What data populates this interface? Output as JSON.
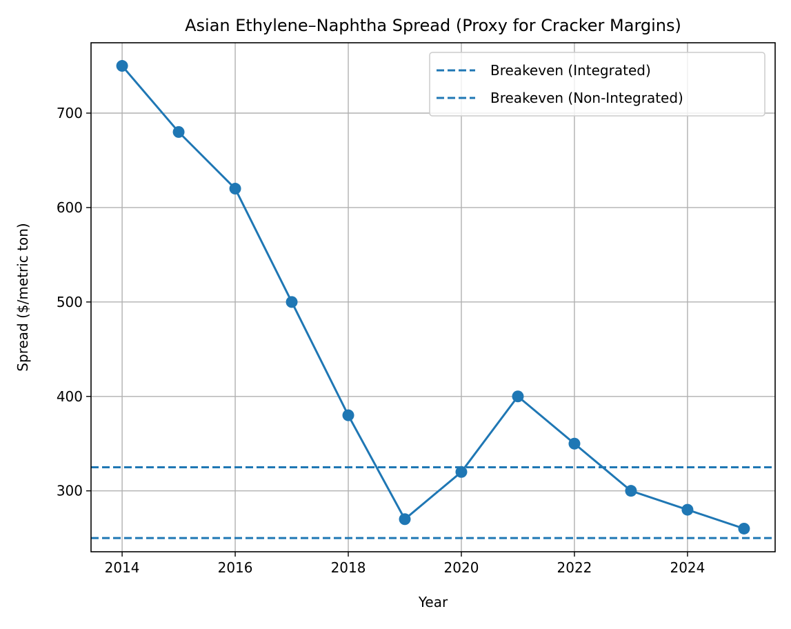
{
  "chart_data": {
    "type": "line",
    "title": "Asian Ethylene–Naphtha Spread (Proxy for Cracker Margins)",
    "xlabel": "Year",
    "ylabel": "Spread ($/metric ton)",
    "xlim": [
      2013.45,
      2025.55
    ],
    "ylim": [
      235.5,
      774.5
    ],
    "xticks": [
      2014,
      2016,
      2018,
      2020,
      2022,
      2024
    ],
    "yticks": [
      300,
      400,
      500,
      600,
      700
    ],
    "grid": true,
    "legend_position": "top-right",
    "color": "#1f77b4",
    "series": [
      {
        "x": [
          2014,
          2015,
          2016,
          2017,
          2018,
          2019,
          2020,
          2021,
          2022,
          2023,
          2024,
          2025
        ],
        "values": [
          750,
          680,
          620,
          500,
          380,
          270,
          320,
          400,
          350,
          300,
          280,
          260
        ],
        "marker": "circle"
      }
    ],
    "hlines": [
      {
        "name": "Breakeven (Integrated)",
        "y": 250,
        "style": "dashed"
      },
      {
        "name": "Breakeven (Non-Integrated)",
        "y": 325,
        "style": "dashed"
      }
    ]
  }
}
